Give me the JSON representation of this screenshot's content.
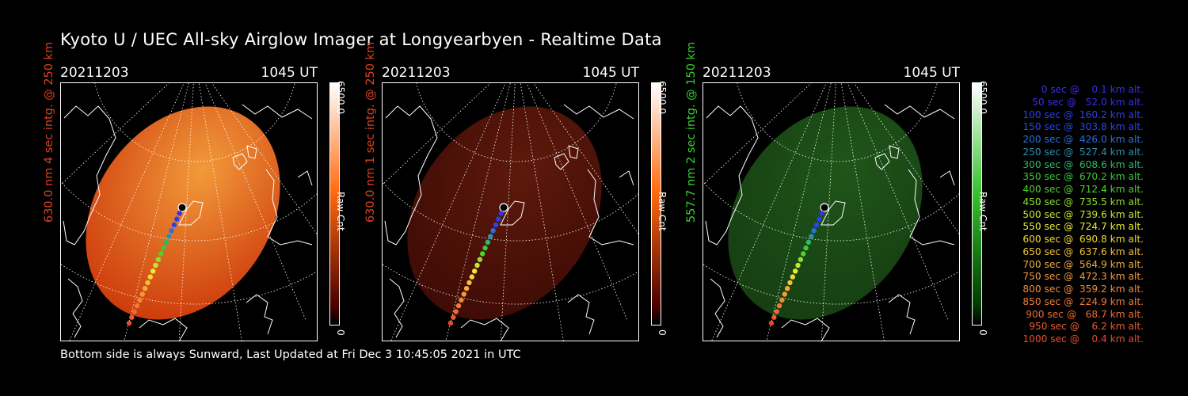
{
  "title": "Kyoto U / UEC All-sky Airglow Imager at Longyearbyen - Realtime Data",
  "footer": "Bottom side is always Sunward, Last Updated at Fri Dec  3 10:45:05 2021 in UTC",
  "panels": [
    {
      "date": "20211203",
      "time": "1045 UT",
      "ylabel": "630.0 nm 4 sec intg. @ 250 km",
      "label_color": "#e0401c",
      "colorbar": {
        "max": "6500.0",
        "unit": "Raw Cnt",
        "min": "0",
        "top": "#ffffff",
        "mid": "#ff6b10",
        "low": "#4a0000"
      },
      "image": {
        "fill": "#ce3d0d",
        "highlight": "#f29a3a",
        "brightness_level": 0.75
      }
    },
    {
      "date": "20211203",
      "time": "1045 UT",
      "ylabel": "630.0 nm 1 sec intg. @ 250 km",
      "label_color": "#e0401c",
      "colorbar": {
        "max": "6500.0",
        "unit": "Raw Cnt",
        "min": "0",
        "top": "#ffffff",
        "mid": "#ff6b10",
        "low": "#4a0000"
      },
      "image": {
        "fill": "#3f0c05",
        "highlight": "#5e190c",
        "brightness_level": 0.2
      }
    },
    {
      "date": "20211203",
      "time": "1045 UT",
      "ylabel": "557.7 nm 2 sec intg. @ 150 km",
      "label_color": "#39d12e",
      "colorbar": {
        "max": "6500.0",
        "unit": "Raw Cnt",
        "min": "0",
        "top": "#ffffff",
        "mid": "#36c22c",
        "low": "#003a00"
      },
      "image": {
        "fill": "#163f12",
        "highlight": "#1f5519",
        "brightness_level": 0.25
      }
    }
  ],
  "legend": [
    {
      "text": "0 sec @    0.1 km alt.",
      "color": "#3a2ee6"
    },
    {
      "text": "50 sec @   52.0 km alt.",
      "color": "#3a2ee6"
    },
    {
      "text": "100 sec @  160.2 km alt.",
      "color": "#2c3ee8"
    },
    {
      "text": "150 sec @  303.8 km alt.",
      "color": "#2c44e6"
    },
    {
      "text": "200 sec @  426.0 km alt.",
      "color": "#2b6fdb"
    },
    {
      "text": "250 sec @  527.4 km alt.",
      "color": "#2c8fae"
    },
    {
      "text": "300 sec @  608.6 km alt.",
      "color": "#2fb86a"
    },
    {
      "text": "350 sec @  670.2 km alt.",
      "color": "#39c93c"
    },
    {
      "text": "400 sec @  712.4 km alt.",
      "color": "#4fd22c"
    },
    {
      "text": "450 sec @  735.5 km alt.",
      "color": "#8ee02c"
    },
    {
      "text": "500 sec @  739.6 km alt.",
      "color": "#c6e82c"
    },
    {
      "text": "550 sec @  724.7 km alt.",
      "color": "#eaea30"
    },
    {
      "text": "600 sec @  690.8 km alt.",
      "color": "#f2dc32"
    },
    {
      "text": "650 sec @  637.6 km alt.",
      "color": "#f2c23a"
    },
    {
      "text": "700 sec @  564.9 km alt.",
      "color": "#f2ab3c"
    },
    {
      "text": "750 sec @  472.3 km alt.",
      "color": "#f29a3c"
    },
    {
      "text": "800 sec @  359.2 km alt.",
      "color": "#f28a3a"
    },
    {
      "text": "850 sec @  224.9 km alt.",
      "color": "#f27a38"
    },
    {
      "text": "900 sec @   68.7 km alt.",
      "color": "#ee6a32"
    },
    {
      "text": "950 sec @    6.2 km alt.",
      "color": "#ec5a2e"
    },
    {
      "text": "1000 sec @    0.4 km alt.",
      "color": "#ea4a2a"
    }
  ]
}
